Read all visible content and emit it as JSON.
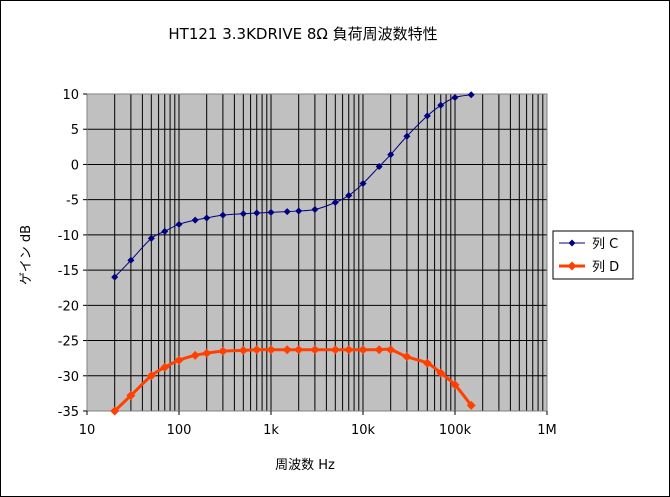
{
  "chart_data": {
    "type": "line",
    "title": "HT121 3.3KDRIVE 8Ω 負荷周波数特性",
    "xlabel": "周波数 Hz",
    "ylabel": "ゲイン dB",
    "x_scale": "log",
    "xlim": [
      10,
      1000000
    ],
    "ylim": [
      -35,
      10
    ],
    "x_ticks": [
      10,
      100,
      1000,
      10000,
      100000,
      1000000
    ],
    "x_tick_labels": [
      "10",
      "100",
      "1k",
      "10k",
      "100k",
      "1M"
    ],
    "y_ticks": [
      10,
      5,
      0,
      -5,
      -10,
      -15,
      -20,
      -25,
      -30,
      -35
    ],
    "y_tick_labels": [
      "10",
      "5",
      "0",
      "-5",
      "-10",
      "-15",
      "-20",
      "-25",
      "-30",
      "-35"
    ],
    "grid": true,
    "plot_background": "#c0c0c0",
    "legend_position": "right",
    "series": [
      {
        "name": "列 C",
        "color": "#000080",
        "marker": "diamond",
        "x": [
          20,
          30,
          50,
          70,
          100,
          150,
          200,
          300,
          500,
          700,
          1000,
          1500,
          2000,
          3000,
          5000,
          7000,
          10000,
          15000,
          20000,
          30000,
          50000,
          70000,
          100000,
          150000
        ],
        "y": [
          -16.0,
          -13.6,
          -10.5,
          -9.5,
          -8.5,
          -7.9,
          -7.6,
          -7.2,
          -7.0,
          -6.9,
          -6.8,
          -6.7,
          -6.6,
          -6.4,
          -5.4,
          -4.4,
          -2.7,
          -0.3,
          1.4,
          4.0,
          6.9,
          8.4,
          9.5,
          9.9
        ]
      },
      {
        "name": "列 D",
        "color": "#ff4000",
        "marker": "diamond",
        "x": [
          20,
          30,
          50,
          70,
          100,
          150,
          200,
          300,
          500,
          700,
          1000,
          1500,
          2000,
          3000,
          5000,
          7000,
          10000,
          15000,
          20000,
          30000,
          50000,
          70000,
          100000,
          150000
        ],
        "y": [
          -35.0,
          -32.8,
          -30.0,
          -28.8,
          -27.8,
          -27.1,
          -26.8,
          -26.5,
          -26.4,
          -26.3,
          -26.3,
          -26.3,
          -26.3,
          -26.3,
          -26.3,
          -26.3,
          -26.3,
          -26.3,
          -26.3,
          -27.3,
          -28.2,
          -29.6,
          -31.3,
          -34.2
        ]
      }
    ]
  }
}
